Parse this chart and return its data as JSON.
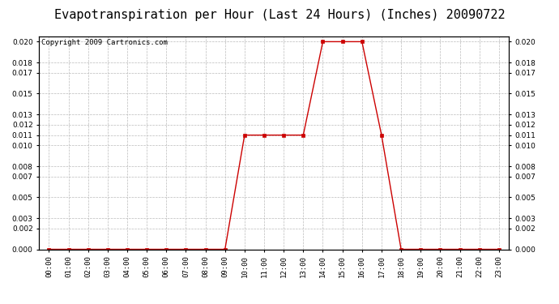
{
  "title": "Evapotranspiration per Hour (Last 24 Hours) (Inches) 20090722",
  "copyright": "Copyright 2009 Cartronics.com",
  "hours": [
    "00:00",
    "01:00",
    "02:00",
    "03:00",
    "04:00",
    "05:00",
    "06:00",
    "07:00",
    "08:00",
    "09:00",
    "10:00",
    "11:00",
    "12:00",
    "13:00",
    "14:00",
    "15:00",
    "16:00",
    "17:00",
    "18:00",
    "19:00",
    "20:00",
    "21:00",
    "22:00",
    "23:00"
  ],
  "values": [
    0.0,
    0.0,
    0.0,
    0.0,
    0.0,
    0.0,
    0.0,
    0.0,
    0.0,
    0.0,
    0.011,
    0.011,
    0.011,
    0.011,
    0.02,
    0.02,
    0.02,
    0.011,
    0.0,
    0.0,
    0.0,
    0.0,
    0.0,
    0.0
  ],
  "line_color": "#cc0000",
  "marker_color": "#cc0000",
  "bg_color": "#ffffff",
  "plot_bg_color": "#ffffff",
  "grid_color": "#bbbbbb",
  "title_fontsize": 11,
  "copyright_fontsize": 6.5,
  "tick_fontsize": 6.5,
  "ylim": [
    0.0,
    0.0205
  ],
  "yticks": [
    0.0,
    0.002,
    0.003,
    0.005,
    0.007,
    0.008,
    0.01,
    0.011,
    0.012,
    0.013,
    0.015,
    0.017,
    0.018,
    0.02
  ]
}
